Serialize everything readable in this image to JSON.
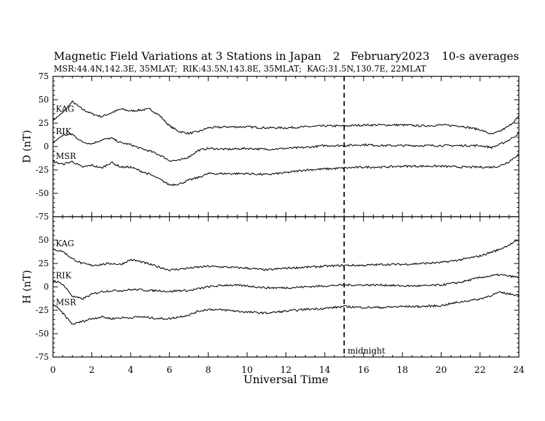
{
  "chart_data": {
    "type": "line",
    "title": "Magnetic Field Variations at 3 Stations in Japan",
    "date_label": "2   February2023",
    "averaging_label": "10-s averages",
    "subtitle": "MSR:44.4N,142.3E, 35MLAT;  RIK:43.5N,143.8E, 35MLAT;  KAG:31.5N,130.7E, 22MLAT",
    "xlabel": "Universal Time",
    "xlim": [
      0,
      24
    ],
    "xticks": [
      0,
      2,
      4,
      6,
      8,
      10,
      12,
      14,
      16,
      18,
      20,
      22,
      24
    ],
    "midnight_ut": 15,
    "midnight_label": "midnight",
    "panels": [
      {
        "ylabel": "D (nT)",
        "ylim": [
          -75,
          75
        ],
        "yticks": [
          75,
          50,
          25,
          0,
          -25,
          -50,
          -75
        ],
        "series": [
          {
            "name": "KAG",
            "x": [
              0,
              0.5,
              1,
              1.5,
              2,
              2.5,
              3,
              3.5,
              4,
              4.5,
              5,
              5.5,
              6,
              6.5,
              7,
              7.5,
              8,
              9,
              10,
              11,
              12,
              13,
              14,
              15,
              16,
              17,
              18,
              19,
              20,
              21,
              22,
              22.6,
              23,
              23.5,
              24
            ],
            "y": [
              28,
              36,
              48,
              40,
              35,
              32,
              36,
              40,
              38,
              39,
              40,
              33,
              22,
              16,
              14,
              16,
              20,
              21,
              21,
              20,
              20,
              21,
              22,
              22,
              23,
              23,
              23,
              22,
              23,
              22,
              18,
              13,
              16,
              22,
              32
            ]
          },
          {
            "name": "RIK",
            "x": [
              0,
              0.5,
              1,
              1.5,
              2,
              2.5,
              3,
              3.5,
              4,
              4.5,
              5,
              5.5,
              6,
              6.5,
              7,
              7.5,
              8,
              9,
              10,
              11,
              12,
              13,
              14,
              15,
              16,
              17,
              18,
              19,
              20,
              21,
              22,
              22.6,
              23,
              23.5,
              24
            ],
            "y": [
              4,
              12,
              13,
              5,
              3,
              7,
              9,
              4,
              2,
              -2,
              -5,
              -9,
              -15,
              -15,
              -11,
              -4,
              -2,
              -3,
              -2,
              -3,
              -2,
              -1,
              1,
              1,
              2,
              1,
              1,
              1,
              1,
              1,
              1,
              -1,
              2,
              7,
              14
            ]
          },
          {
            "name": "MSR",
            "x": [
              0,
              0.5,
              1,
              1.5,
              2,
              2.5,
              3,
              3.5,
              4,
              4.5,
              5,
              5.5,
              6,
              6.5,
              7,
              7.5,
              8,
              9,
              10,
              11,
              12,
              13,
              14,
              15,
              16,
              17,
              18,
              19,
              20,
              21,
              22,
              22.6,
              23,
              23.5,
              24
            ],
            "y": [
              -16,
              -19,
              -16,
              -22,
              -20,
              -23,
              -17,
              -22,
              -22,
              -26,
              -30,
              -35,
              -41,
              -40,
              -36,
              -33,
              -29,
              -29,
              -29,
              -30,
              -28,
              -25,
              -24,
              -23,
              -22,
              -22,
              -21,
              -21,
              -21,
              -22,
              -22,
              -22,
              -21,
              -16,
              -8
            ]
          }
        ]
      },
      {
        "ylabel": "H (nT)",
        "ylim": [
          -75,
          75
        ],
        "yticks": [
          75,
          50,
          25,
          0,
          -25,
          -50,
          -75
        ],
        "series": [
          {
            "name": "KAG",
            "x": [
              0,
              0.5,
              1,
              1.5,
              2,
              2.5,
              3,
              3.5,
              4,
              4.5,
              5,
              5.5,
              6,
              6.5,
              7,
              7.5,
              8,
              9,
              10,
              11,
              12,
              13,
              14,
              15,
              16,
              17,
              18,
              19,
              20,
              21,
              22,
              23,
              24
            ],
            "y": [
              40,
              38,
              30,
              25,
              23,
              24,
              25,
              24,
              29,
              27,
              24,
              21,
              18,
              19,
              20,
              21,
              22,
              21,
              20,
              18,
              20,
              21,
              22,
              23,
              23,
              24,
              24,
              25,
              26,
              29,
              33,
              40,
              50
            ]
          },
          {
            "name": "RIK",
            "x": [
              0,
              0.5,
              1,
              1.5,
              2,
              2.5,
              3,
              3.5,
              4,
              4.5,
              5,
              5.5,
              6,
              6.5,
              7,
              7.5,
              8,
              9,
              10,
              11,
              12,
              13,
              14,
              15,
              16,
              17,
              18,
              19,
              20,
              21,
              22,
              23,
              24
            ],
            "y": [
              7,
              3,
              -10,
              -13,
              -8,
              -5,
              -4,
              -4,
              -3,
              -3,
              -4,
              -4,
              -5,
              -4,
              -4,
              -2,
              0,
              2,
              1,
              -1,
              -1,
              0,
              1,
              2,
              2,
              2,
              1,
              1,
              2,
              5,
              10,
              13,
              10
            ]
          },
          {
            "name": "MSR",
            "x": [
              0,
              0.5,
              1,
              1.5,
              2,
              2.5,
              3,
              3.5,
              4,
              4.5,
              5,
              5.5,
              6,
              6.5,
              7,
              7.5,
              8,
              9,
              10,
              11,
              12,
              13,
              14,
              15,
              16,
              17,
              18,
              19,
              20,
              21,
              22,
              23,
              24
            ],
            "y": [
              -18,
              -28,
              -40,
              -37,
              -34,
              -32,
              -34,
              -33,
              -33,
              -32,
              -33,
              -34,
              -34,
              -32,
              -30,
              -26,
              -24,
              -25,
              -27,
              -28,
              -26,
              -24,
              -23,
              -21,
              -22,
              -22,
              -21,
              -21,
              -20,
              -16,
              -13,
              -6,
              -9
            ]
          }
        ]
      }
    ]
  }
}
